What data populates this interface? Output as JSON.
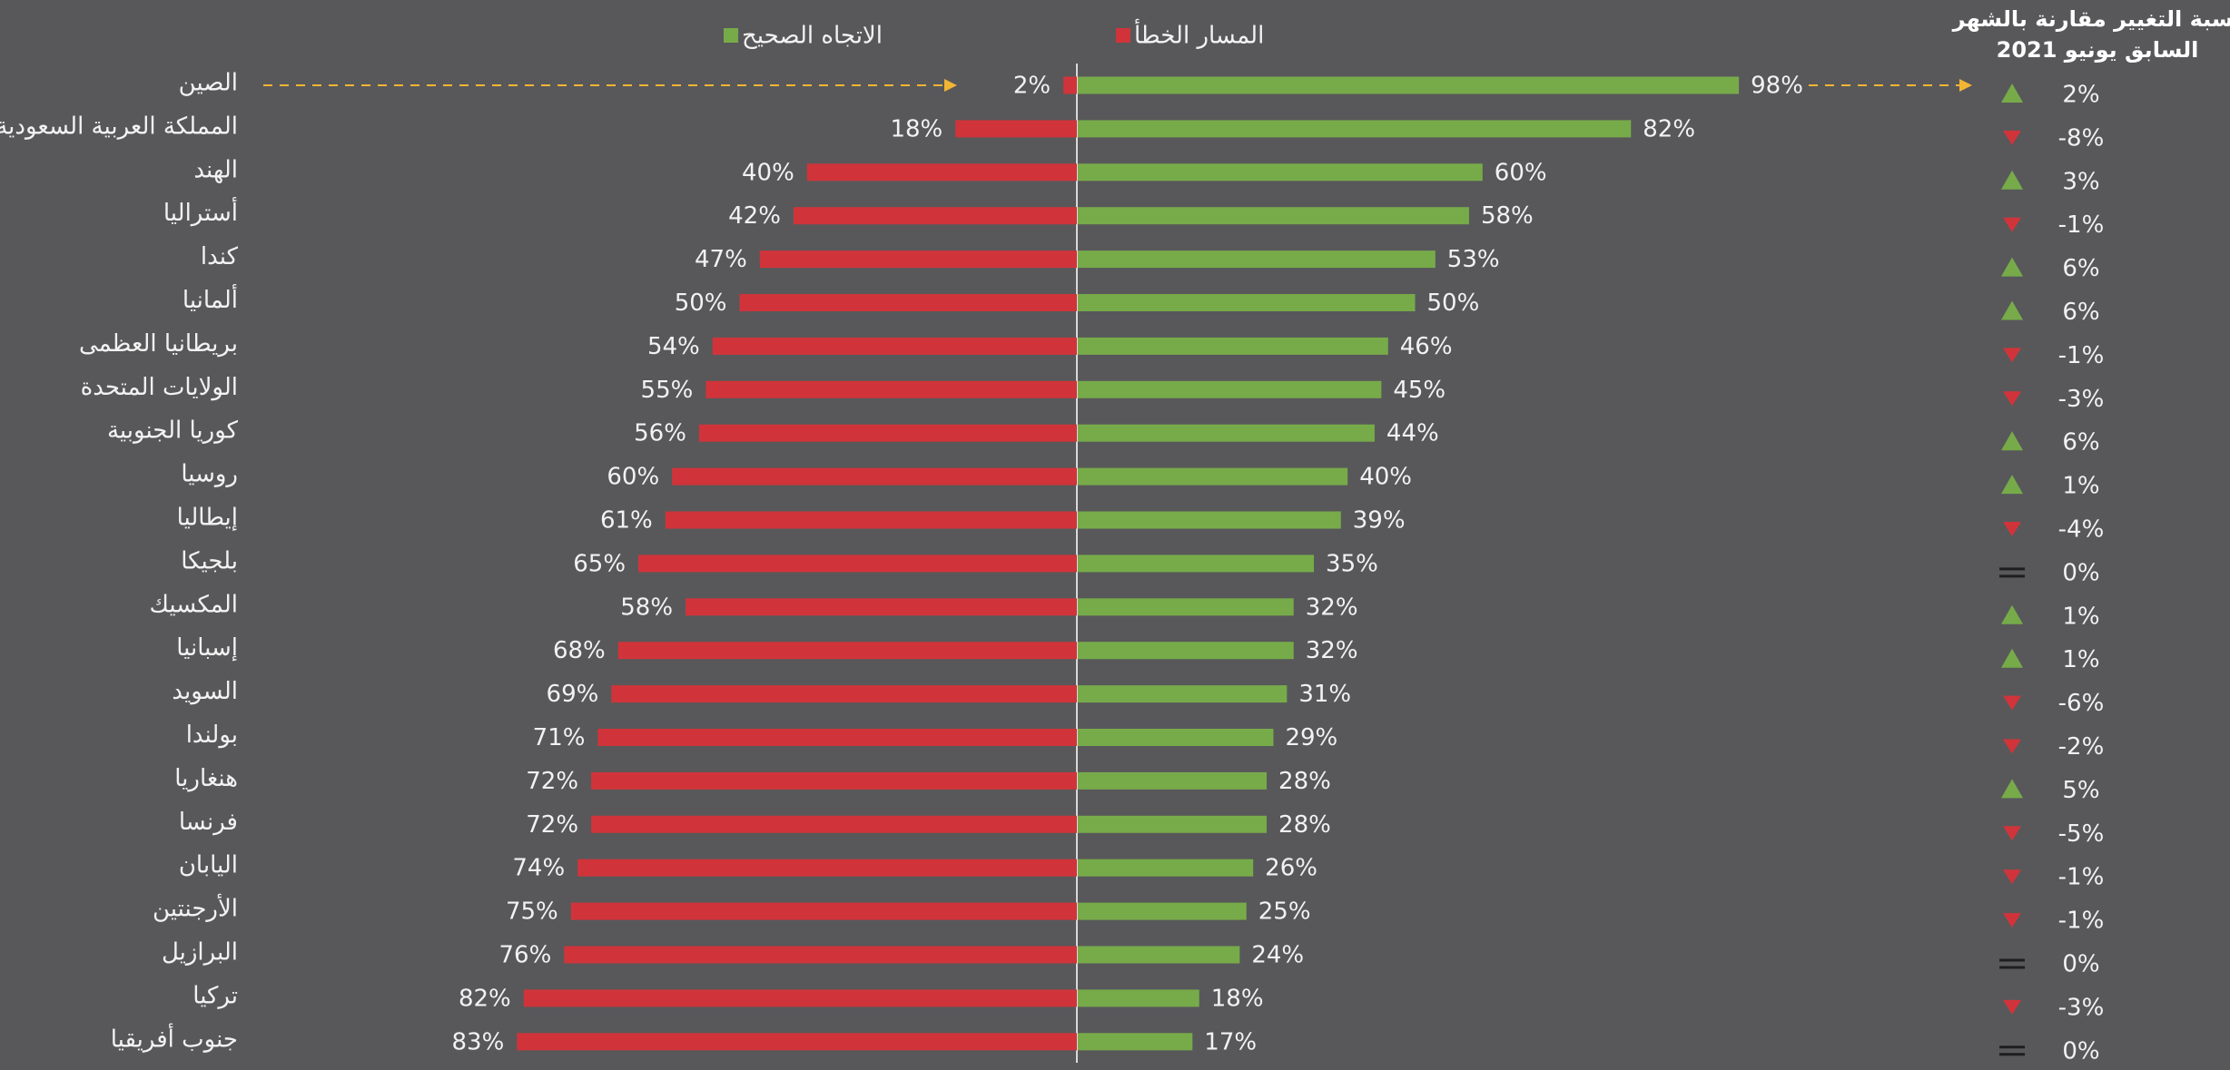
{
  "chart_data": {
    "type": "diverging-bar",
    "categories": [
      "الصين",
      "المملكة العربية السعودية",
      "الهند",
      "أستراليا",
      "كندا",
      "ألمانيا",
      "بريطانيا العظمى",
      "الولايات المتحدة",
      "كوريا الجنوبية",
      "روسيا",
      "إيطاليا",
      "بلجيكا",
      "المكسيك",
      "إسبانيا",
      "السويد",
      "بولندا",
      "هنغاريا",
      "فرنسا",
      "اليابان",
      "الأرجنتين",
      "البرازيل",
      "تركيا",
      "جنوب أفريقيا"
    ],
    "series": [
      {
        "name": "المسار الخطأ",
        "color": "#d0343a",
        "side": "left",
        "values": [
          2,
          18,
          40,
          42,
          47,
          50,
          54,
          55,
          56,
          60,
          61,
          65,
          58,
          68,
          69,
          71,
          72,
          72,
          74,
          75,
          76,
          82,
          83
        ],
        "value_labels": [
          "2%",
          "18%",
          "40%",
          "42%",
          "47%",
          "50%",
          "54%",
          "55%",
          "56%",
          "60%",
          "61%",
          "65%",
          "58%",
          "68%",
          "69%",
          "71%",
          "72%",
          "72%",
          "74%",
          "75%",
          "76%",
          "82%",
          "83%"
        ]
      },
      {
        "name": "الاتجاه الصحيح",
        "color": "#77ab4a",
        "side": "right",
        "values": [
          98,
          82,
          60,
          58,
          53,
          50,
          46,
          45,
          44,
          40,
          39,
          35,
          32,
          32,
          31,
          29,
          28,
          28,
          26,
          25,
          24,
          18,
          17
        ],
        "value_labels": [
          "98%",
          "82%",
          "60%",
          "58%",
          "53%",
          "50%",
          "46%",
          "45%",
          "44%",
          "40%",
          "39%",
          "35%",
          "32%",
          "32%",
          "31%",
          "29%",
          "28%",
          "28%",
          "26%",
          "25%",
          "24%",
          "18%",
          "17%"
        ]
      }
    ],
    "xlim": [
      0,
      100
    ],
    "change": {
      "title_lines": [
        "نسبة التغيير مقارنة بالشهر",
        "السابق يونيو 2021"
      ],
      "up_color": "#77ab4a",
      "down_color": "#d0343a",
      "values": [
        2,
        -8,
        3,
        -1,
        6,
        6,
        -1,
        -3,
        6,
        1,
        -4,
        0,
        1,
        1,
        -6,
        -2,
        5,
        -5,
        -1,
        -1,
        0,
        -3,
        0
      ],
      "value_labels": [
        "2%",
        "-8%",
        "3%",
        "-1%",
        "6%",
        "6%",
        "-1%",
        "-3%",
        "6%",
        "1%",
        "-4%",
        "0%",
        "1%",
        "1%",
        "-6%",
        "-2%",
        "5%",
        "-5%",
        "-1%",
        "-1%",
        "0%",
        "-3%",
        "0%"
      ]
    }
  }
}
